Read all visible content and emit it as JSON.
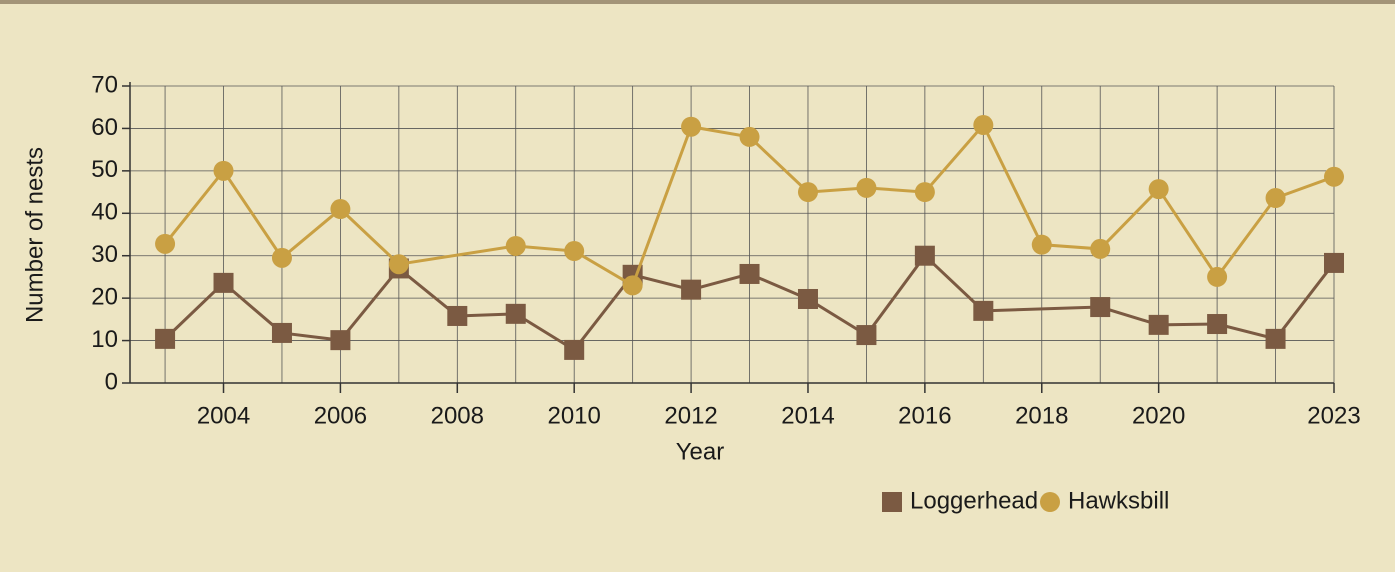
{
  "chart_data": {
    "type": "line",
    "xlabel": "Year",
    "ylabel": "Number of nests",
    "xlim": [
      2002.4,
      2023
    ],
    "ylim": [
      0,
      70
    ],
    "xticks": [
      2004,
      2006,
      2008,
      2010,
      2012,
      2014,
      2016,
      2018,
      2020,
      2023
    ],
    "yticks": [
      0,
      10,
      20,
      30,
      40,
      50,
      60,
      70
    ],
    "grid": true,
    "legend": "bottom right",
    "series": [
      {
        "name": "Loggerhead",
        "color": "#7b5a42",
        "marker": "square",
        "x": [
          2003,
          2004,
          2005,
          2006,
          2007,
          2008,
          2009,
          2010,
          2011,
          2012,
          2013,
          2014,
          2015,
          2016,
          2017,
          2019,
          2020,
          2021,
          2022,
          2023
        ],
        "values": [
          10.4,
          23.6,
          11.8,
          10.1,
          27,
          15.8,
          16.3,
          7.8,
          25.5,
          22,
          25.7,
          19.8,
          11.3,
          30,
          17,
          17.9,
          13.7,
          13.9,
          10.4,
          28.3
        ]
      },
      {
        "name": "Hawksbill",
        "color": "#c9a043",
        "marker": "circle",
        "x": [
          2003,
          2004,
          2005,
          2006,
          2007,
          2009,
          2010,
          2011,
          2012,
          2013,
          2014,
          2015,
          2016,
          2017,
          2018,
          2019,
          2020,
          2021,
          2022,
          2023
        ],
        "values": [
          32.8,
          50,
          29.5,
          41,
          28,
          32.3,
          31.1,
          23,
          60.4,
          58,
          45,
          46,
          45,
          60.8,
          32.6,
          31.6,
          45.7,
          25,
          43.6,
          48.6
        ]
      }
    ]
  }
}
